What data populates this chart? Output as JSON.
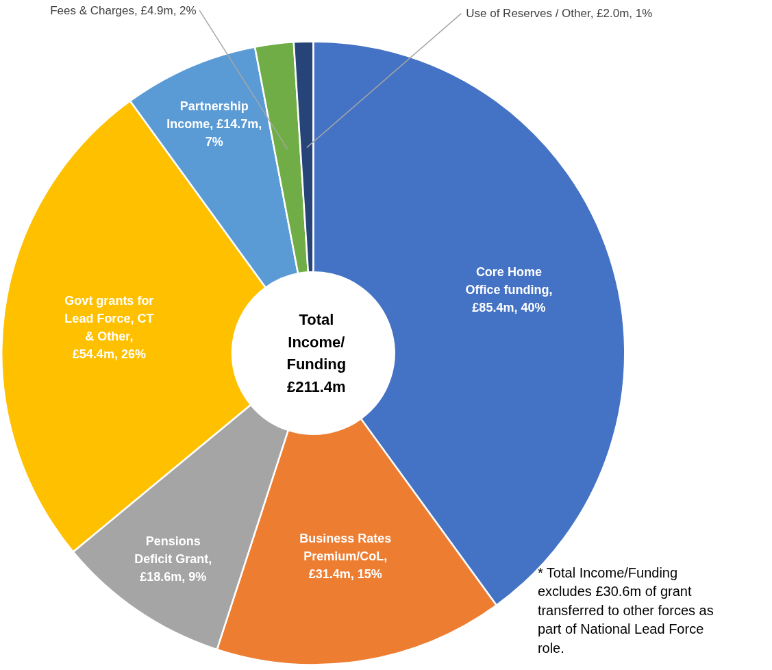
{
  "chart_data": {
    "type": "donut",
    "categories": [
      "Core Home Office funding, £85.4m, 40%",
      "Business Rates Premium/CoL, £31.4m, 15%",
      "Pensions Deficit Grant, £18.6m, 9%",
      "Govt grants for Lead Force, CT & Other, £54.4m, 26%",
      "Partnership Income, £14.7m, 7%",
      "Fees & Charges, £4.9m, 2%",
      "Use of Reserves / Other, £2.0m, 1%"
    ],
    "values": [
      40,
      15,
      9,
      26,
      7,
      2,
      1
    ],
    "colors": [
      "#4472c4",
      "#ed7d31",
      "#a5a5a5",
      "#ffc000",
      "#5b9bd5",
      "#70ad47",
      "#264478"
    ],
    "annotations": [
      "Total Income/ Funding £211.4m",
      "* Total Income/Funding excludes £30.6m of grant transferred to other forces as part of National Lead Force role."
    ]
  }
}
